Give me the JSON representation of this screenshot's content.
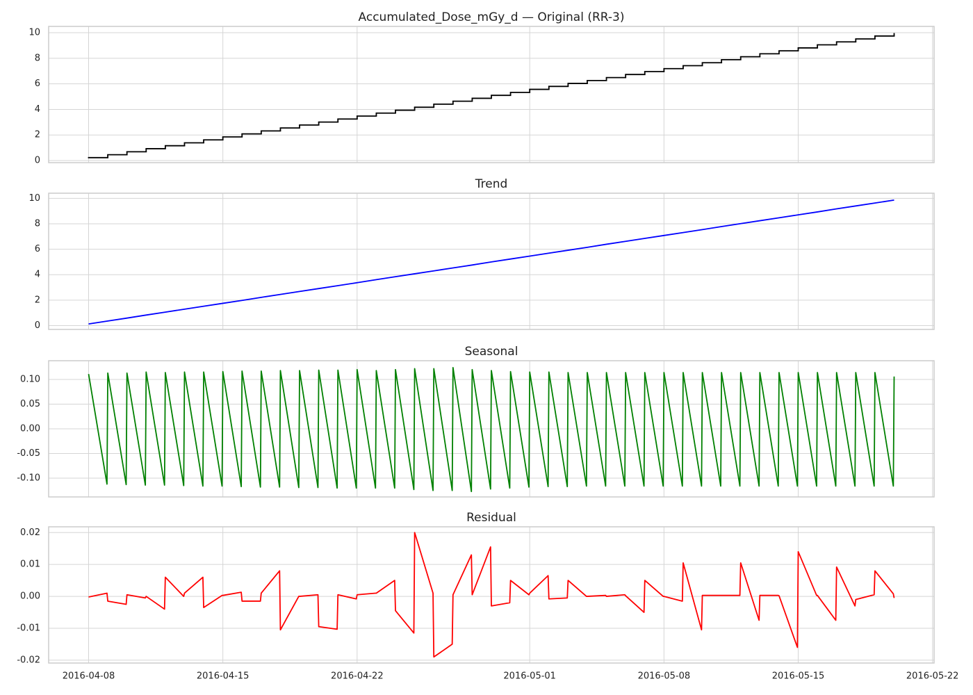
{
  "chart_data": [
    {
      "type": "step",
      "title": "Accumulated_Dose_mGy_d — Original (RR-3)",
      "color": "#000000",
      "x": [
        "2016-04-08",
        "2016-04-09",
        "2016-04-10",
        "2016-04-11",
        "2016-04-12",
        "2016-04-13",
        "2016-04-14",
        "2016-04-15",
        "2016-04-16",
        "2016-04-17",
        "2016-04-18",
        "2016-04-19",
        "2016-04-20",
        "2016-04-21",
        "2016-04-22",
        "2016-04-23",
        "2016-04-24",
        "2016-04-25",
        "2016-04-26",
        "2016-04-27",
        "2016-04-28",
        "2016-04-29",
        "2016-04-30",
        "2016-05-01",
        "2016-05-02",
        "2016-05-03",
        "2016-05-04",
        "2016-05-05",
        "2016-05-06",
        "2016-05-07",
        "2016-05-08",
        "2016-05-09",
        "2016-05-10",
        "2016-05-11",
        "2016-05-12",
        "2016-05-13",
        "2016-05-14",
        "2016-05-15",
        "2016-05-16",
        "2016-05-17",
        "2016-05-18",
        "2016-05-19",
        "2016-05-20"
      ],
      "values": [
        0.23,
        0.46,
        0.69,
        0.93,
        1.16,
        1.39,
        1.62,
        1.85,
        2.09,
        2.32,
        2.55,
        2.78,
        3.01,
        3.25,
        3.48,
        3.71,
        3.94,
        4.17,
        4.41,
        4.64,
        4.87,
        5.1,
        5.33,
        5.57,
        5.8,
        6.03,
        6.26,
        6.49,
        6.73,
        6.96,
        7.19,
        7.42,
        7.65,
        7.89,
        8.12,
        8.35,
        8.58,
        8.81,
        9.05,
        9.28,
        9.51,
        9.74,
        9.97
      ],
      "xlim": [
        "2016-04-05 22:00",
        "2016-05-22 02:00"
      ],
      "xticks": [
        "2016-04-08",
        "2016-04-15",
        "2016-04-22",
        "2016-05-01",
        "2016-05-08",
        "2016-05-15",
        "2016-05-22"
      ],
      "ylim": [
        -0.16,
        10.49
      ],
      "yticks": [
        0,
        2,
        4,
        6,
        8,
        10
      ],
      "grid": true
    },
    {
      "type": "line",
      "title": "Trend",
      "color": "#0000ff",
      "x": [
        "2016-04-08",
        "2016-04-09",
        "2016-04-10",
        "2016-04-11",
        "2016-04-12",
        "2016-04-13",
        "2016-04-14",
        "2016-04-15",
        "2016-04-16",
        "2016-04-17",
        "2016-04-18",
        "2016-04-19",
        "2016-04-20",
        "2016-04-21",
        "2016-04-22",
        "2016-04-23",
        "2016-04-24",
        "2016-04-25",
        "2016-04-26",
        "2016-04-27",
        "2016-04-28",
        "2016-04-29",
        "2016-04-30",
        "2016-05-01",
        "2016-05-02",
        "2016-05-03",
        "2016-05-04",
        "2016-05-05",
        "2016-05-06",
        "2016-05-07",
        "2016-05-08",
        "2016-05-09",
        "2016-05-10",
        "2016-05-11",
        "2016-05-12",
        "2016-05-13",
        "2016-05-14",
        "2016-05-15",
        "2016-05-16",
        "2016-05-17",
        "2016-05-18",
        "2016-05-19",
        "2016-05-20"
      ],
      "values": [
        0.13,
        0.36,
        0.59,
        0.83,
        1.06,
        1.29,
        1.52,
        1.75,
        1.98,
        2.22,
        2.45,
        2.68,
        2.91,
        3.14,
        3.37,
        3.61,
        3.84,
        4.07,
        4.3,
        4.53,
        4.76,
        5.0,
        5.23,
        5.46,
        5.69,
        5.92,
        6.15,
        6.39,
        6.62,
        6.85,
        7.08,
        7.31,
        7.54,
        7.78,
        8.01,
        8.24,
        8.47,
        8.7,
        8.93,
        9.17,
        9.4,
        9.63,
        9.86
      ],
      "xlim": [
        "2016-04-05 22:00",
        "2016-05-22 02:00"
      ],
      "xticks": [
        "2016-04-08",
        "2016-04-15",
        "2016-04-22",
        "2016-05-01",
        "2016-05-08",
        "2016-05-15",
        "2016-05-22"
      ],
      "ylim": [
        -0.3,
        10.4
      ],
      "yticks": [
        0,
        2,
        4,
        6,
        8,
        10
      ],
      "grid": true
    },
    {
      "type": "line",
      "title": "Seasonal",
      "color": "#008000",
      "x": [
        "2016-04-08 00:00",
        "2016-04-08 23:00",
        "2016-04-09 00:00",
        "2016-04-09 23:00",
        "2016-04-10 00:00",
        "2016-04-10 23:00",
        "2016-04-11 00:00",
        "2016-04-11 23:00",
        "2016-04-12 00:00",
        "2016-04-12 23:00",
        "2016-04-13 00:00",
        "2016-04-13 23:00",
        "2016-04-14 00:00",
        "2016-04-14 23:00",
        "2016-04-15 00:00",
        "2016-04-15 23:00",
        "2016-04-16 00:00",
        "2016-04-16 23:00",
        "2016-04-17 00:00",
        "2016-04-17 23:00",
        "2016-04-18 00:00",
        "2016-04-18 23:00",
        "2016-04-19 00:00",
        "2016-04-19 23:00",
        "2016-04-20 00:00",
        "2016-04-20 23:00",
        "2016-04-21 00:00",
        "2016-04-21 23:00",
        "2016-04-22 00:00",
        "2016-04-22 23:00",
        "2016-04-23 00:00",
        "2016-04-23 23:00",
        "2016-04-24 00:00",
        "2016-04-24 23:00",
        "2016-04-25 00:00",
        "2016-04-25 23:00",
        "2016-04-26 00:00",
        "2016-04-26 23:00",
        "2016-04-27 00:00",
        "2016-04-27 23:00",
        "2016-04-28 00:00",
        "2016-04-28 23:00",
        "2016-04-29 00:00",
        "2016-04-29 23:00",
        "2016-04-30 00:00",
        "2016-04-30 23:00",
        "2016-05-01 00:00",
        "2016-05-01 23:00",
        "2016-05-02 00:00",
        "2016-05-02 23:00",
        "2016-05-03 00:00",
        "2016-05-03 23:00",
        "2016-05-04 00:00",
        "2016-05-04 23:00",
        "2016-05-05 00:00",
        "2016-05-05 23:00",
        "2016-05-06 00:00",
        "2016-05-06 23:00",
        "2016-05-07 00:00",
        "2016-05-07 23:00",
        "2016-05-08 00:00",
        "2016-05-08 23:00",
        "2016-05-09 00:00",
        "2016-05-09 23:00",
        "2016-05-10 00:00",
        "2016-05-10 23:00",
        "2016-05-11 00:00",
        "2016-05-11 23:00",
        "2016-05-12 00:00",
        "2016-05-12 23:00",
        "2016-05-13 00:00",
        "2016-05-13 23:00",
        "2016-05-14 00:00",
        "2016-05-14 23:00",
        "2016-05-15 00:00",
        "2016-05-15 23:00",
        "2016-05-16 00:00",
        "2016-05-16 23:00",
        "2016-05-17 00:00",
        "2016-05-17 23:00",
        "2016-05-18 00:00",
        "2016-05-18 23:00",
        "2016-05-19 00:00",
        "2016-05-19 23:00",
        "2016-05-20 00:00"
      ],
      "values": [
        0.111,
        -0.112,
        0.113,
        -0.113,
        0.113,
        -0.114,
        0.115,
        -0.114,
        0.114,
        -0.115,
        0.115,
        -0.116,
        0.115,
        -0.116,
        0.116,
        -0.117,
        0.117,
        -0.118,
        0.117,
        -0.118,
        0.118,
        -0.119,
        0.118,
        -0.119,
        0.119,
        -0.12,
        0.119,
        -0.12,
        0.12,
        -0.12,
        0.118,
        -0.12,
        0.12,
        -0.123,
        0.122,
        -0.125,
        0.122,
        -0.125,
        0.124,
        -0.127,
        0.12,
        -0.122,
        0.118,
        -0.12,
        0.116,
        -0.118,
        0.115,
        -0.117,
        0.115,
        -0.117,
        0.114,
        -0.116,
        0.114,
        -0.116,
        0.114,
        -0.116,
        0.114,
        -0.116,
        0.114,
        -0.116,
        0.114,
        -0.116,
        0.114,
        -0.116,
        0.114,
        -0.116,
        0.114,
        -0.116,
        0.114,
        -0.116,
        0.114,
        -0.116,
        0.114,
        -0.116,
        0.114,
        -0.116,
        0.114,
        -0.116,
        0.114,
        -0.116,
        0.114,
        -0.116,
        0.114,
        -0.116,
        0.106
      ],
      "xlim": [
        "2016-04-05 22:00",
        "2016-05-22 02:00"
      ],
      "xticks": [
        "2016-04-08",
        "2016-04-15",
        "2016-04-22",
        "2016-05-01",
        "2016-05-08",
        "2016-05-15",
        "2016-05-22"
      ],
      "ylim": [
        -0.138,
        0.138
      ],
      "yticks": [
        {
          "value": -0.1,
          "label": "-0.10"
        },
        {
          "value": -0.05,
          "label": "-0.05"
        },
        {
          "value": 0,
          "label": "0.00"
        },
        0.05,
        {
          "value": 0.1,
          "label": "0.10"
        }
      ],
      "grid": true
    },
    {
      "type": "line",
      "title": "Residual",
      "color": "#ff0000",
      "x": [
        "2016-04-08 00:00",
        "2016-04-08 23:00",
        "2016-04-09 00:00",
        "2016-04-09 23:00",
        "2016-04-10 00:00",
        "2016-04-10 23:00",
        "2016-04-11 00:00",
        "2016-04-11 23:00",
        "2016-04-12 00:00",
        "2016-04-12 23:00",
        "2016-04-13 00:00",
        "2016-04-13 23:00",
        "2016-04-14 00:00",
        "2016-04-14 23:00",
        "2016-04-15 00:00",
        "2016-04-15 23:00",
        "2016-04-16 00:00",
        "2016-04-16 23:00",
        "2016-04-17 00:00",
        "2016-04-17 23:00",
        "2016-04-18 00:00",
        "2016-04-18 23:00",
        "2016-04-19 00:00",
        "2016-04-19 23:00",
        "2016-04-20 00:00",
        "2016-04-20 23:00",
        "2016-04-21 00:00",
        "2016-04-21 23:00",
        "2016-04-22 00:00",
        "2016-04-22 23:00",
        "2016-04-23 00:00",
        "2016-04-23 23:00",
        "2016-04-24 00:00",
        "2016-04-24 23:00",
        "2016-04-25 00:00",
        "2016-04-25 23:00",
        "2016-04-26 00:00",
        "2016-04-26 23:00",
        "2016-04-27 00:00",
        "2016-04-27 23:00",
        "2016-04-28 00:00",
        "2016-04-28 23:00",
        "2016-04-29 00:00",
        "2016-04-29 23:00",
        "2016-04-30 00:00",
        "2016-04-30 23:00",
        "2016-05-01 00:00",
        "2016-05-01 23:00",
        "2016-05-02 00:00",
        "2016-05-02 23:00",
        "2016-05-03 00:00",
        "2016-05-03 23:00",
        "2016-05-04 00:00",
        "2016-05-04 23:00",
        "2016-05-05 00:00",
        "2016-05-05 23:00",
        "2016-05-06 00:00",
        "2016-05-06 23:00",
        "2016-05-07 00:00",
        "2016-05-07 23:00",
        "2016-05-08 00:00",
        "2016-05-08 23:00",
        "2016-05-09 00:00",
        "2016-05-09 23:00",
        "2016-05-10 00:00",
        "2016-05-10 23:00",
        "2016-05-11 00:00",
        "2016-05-11 23:00",
        "2016-05-12 00:00",
        "2016-05-12 23:00",
        "2016-05-13 00:00",
        "2016-05-13 23:00",
        "2016-05-14 00:00",
        "2016-05-14 23:00",
        "2016-05-15 00:00",
        "2016-05-15 23:00",
        "2016-05-16 00:00",
        "2016-05-16 23:00",
        "2016-05-17 00:00",
        "2016-05-17 23:00",
        "2016-05-18 00:00",
        "2016-05-18 23:00",
        "2016-05-19 00:00",
        "2016-05-19 23:00",
        "2016-05-20 00:00"
      ],
      "values": [
        -0.0002,
        0.001,
        -0.0015,
        -0.0025,
        0.0005,
        -0.0005,
        0,
        -0.004,
        0.006,
        0,
        0.001,
        0.006,
        -0.0035,
        0.0003,
        0.0003,
        0.0013,
        -0.0015,
        -0.0015,
        0.001,
        0.008,
        -0.0105,
        0,
        0,
        0.0005,
        -0.0095,
        -0.0103,
        0.0005,
        -0.0008,
        0.0005,
        0.001,
        0.001,
        0.005,
        -0.0045,
        -0.0115,
        0.02,
        0.001,
        -0.019,
        -0.015,
        0.0005,
        0.013,
        0.0005,
        0.0155,
        -0.003,
        -0.002,
        0.005,
        0.0005,
        0.001,
        0.0065,
        -0.0008,
        -0.0005,
        0.005,
        0,
        0,
        0.0003,
        0,
        0.0005,
        0.0002,
        -0.005,
        0.005,
        0,
        0,
        -0.0015,
        0.0105,
        -0.0105,
        0.0003,
        0.0003,
        0.0003,
        0.0003,
        0.0105,
        -0.0075,
        0.0003,
        0.0003,
        0.0002,
        -0.016,
        0.014,
        0.0003,
        0.0003,
        -0.0075,
        0.0092,
        -0.003,
        -0.001,
        0.0005,
        0.008,
        0.0008,
        -0.0005
      ],
      "xlim": [
        "2016-04-05 22:00",
        "2016-05-22 02:00"
      ],
      "xticks": [
        "2016-04-08",
        "2016-04-15",
        "2016-04-22",
        "2016-05-01",
        "2016-05-08",
        "2016-05-15",
        "2016-05-22"
      ],
      "ylim": [
        -0.0209,
        0.0218
      ],
      "yticks": [
        {
          "value": -0.02,
          "label": "-0.02"
        },
        {
          "value": -0.01,
          "label": "-0.01"
        },
        {
          "value": 0,
          "label": "0.00"
        },
        0.01,
        0.02
      ],
      "grid": true
    }
  ]
}
